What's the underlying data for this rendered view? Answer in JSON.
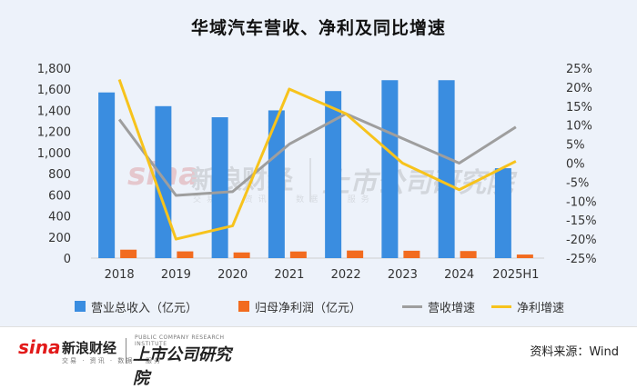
{
  "title": "华域汽车营收、净利及同比增速",
  "source": "资料来源：Wind",
  "logos": {
    "sina": "sina",
    "sina_cn": "新浪财经",
    "sina_sub": "交易 · 资讯 · 数据 · 服务",
    "prc_en": "PUBLIC COMPANY RESEARCH INSTITUTE",
    "prc_cn": "上市公司研究院"
  },
  "colors": {
    "bar_revenue": "#3a8de0",
    "bar_profit": "#f26b1f",
    "line_revenue_growth": "#9e9e9e",
    "line_profit_growth": "#f7c31c"
  },
  "chart_data": {
    "type": "bar",
    "categories": [
      "2018",
      "2019",
      "2020",
      "2021",
      "2022",
      "2023",
      "2024",
      "2025H1"
    ],
    "series": [
      {
        "name": "营业总收入（亿元）",
        "type": "bar",
        "axis": "left",
        "values": [
          1570,
          1440,
          1335,
          1400,
          1583,
          1686,
          1686,
          852
        ]
      },
      {
        "name": "归母净利润（亿元）",
        "type": "bar",
        "axis": "left",
        "values": [
          80,
          64,
          54,
          63,
          72,
          70,
          67,
          34
        ]
      },
      {
        "name": "营收增速",
        "type": "line",
        "axis": "right",
        "values": [
          11.5,
          -8.5,
          -7.5,
          5,
          13,
          6.5,
          0,
          9.5
        ]
      },
      {
        "name": "净利增速",
        "type": "line",
        "axis": "right",
        "values": [
          22,
          -20,
          -16.5,
          19.5,
          13,
          0,
          -7,
          0.5
        ]
      }
    ],
    "left_axis": {
      "min": 0,
      "max": 1800,
      "step": 200,
      "ticks": [
        "0",
        "200",
        "400",
        "600",
        "800",
        "1,000",
        "1,200",
        "1,400",
        "1,600",
        "1,800"
      ]
    },
    "right_axis": {
      "min": -25,
      "max": 25,
      "step": 5,
      "ticks": [
        "-25%",
        "-20%",
        "-15%",
        "-10%",
        "-5%",
        "0%",
        "5%",
        "10%",
        "15%",
        "20%",
        "25%"
      ]
    },
    "grid": false,
    "legend_position": "bottom"
  }
}
